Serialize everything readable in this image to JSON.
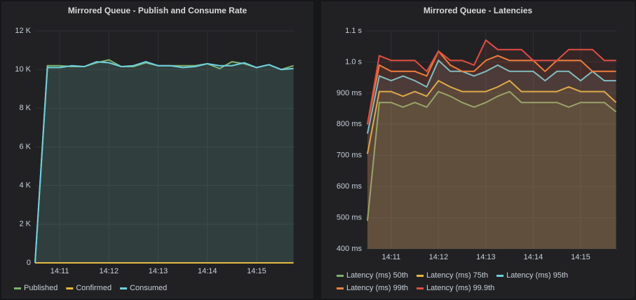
{
  "chart_data": [
    {
      "type": "line",
      "title": "Mirrored Queue - Publish and Consume Rate",
      "x": [
        10.5,
        10.75,
        11,
        11.25,
        11.5,
        11.75,
        12,
        12.25,
        12.5,
        12.75,
        13,
        13.25,
        13.5,
        13.75,
        14,
        14.25,
        14.5,
        14.75,
        15,
        15.25,
        15.5,
        15.75
      ],
      "xlim": [
        10.5,
        15.77
      ],
      "xticks": [
        {
          "value": 11,
          "label": "14:11"
        },
        {
          "value": 12,
          "label": "14:12"
        },
        {
          "value": 13,
          "label": "14:13"
        },
        {
          "value": 14,
          "label": "14:14"
        },
        {
          "value": 15,
          "label": "14:15"
        }
      ],
      "ylim": [
        0,
        12000
      ],
      "yticks": [
        0,
        {
          "value": 2000,
          "label": "2 K"
        },
        {
          "value": 4000,
          "label": "4 K"
        },
        {
          "value": 6000,
          "label": "6 K"
        },
        {
          "value": 8000,
          "label": "8 K"
        },
        {
          "value": 10000,
          "label": "10 K"
        },
        {
          "value": 12000,
          "label": "12 K"
        }
      ],
      "grid": true,
      "fill": true,
      "legend": "bottom",
      "series": [
        {
          "name": "Published",
          "color": "#7eb26d",
          "values": [
            0,
            10200,
            10200,
            10150,
            10150,
            10350,
            10500,
            10150,
            10150,
            10350,
            10200,
            10200,
            10200,
            10200,
            10300,
            10050,
            10400,
            10300,
            10100,
            10250,
            10000,
            10200
          ]
        },
        {
          "name": "Confirmed",
          "color": "#eab839",
          "values": [
            0,
            0,
            0,
            0,
            0,
            0,
            0,
            0,
            0,
            0,
            0,
            0,
            0,
            0,
            0,
            0,
            0,
            0,
            0,
            0,
            0,
            0
          ]
        },
        {
          "name": "Consumed",
          "color": "#6ed0e0",
          "values": [
            0,
            10100,
            10100,
            10200,
            10150,
            10400,
            10350,
            10150,
            10200,
            10400,
            10200,
            10200,
            10100,
            10150,
            10300,
            10200,
            10200,
            10350,
            10100,
            10250,
            10000,
            10050
          ]
        }
      ]
    },
    {
      "type": "line",
      "title": "Mirrored Queue - Latencies",
      "x": [
        10.5,
        10.75,
        11,
        11.25,
        11.5,
        11.75,
        12,
        12.25,
        12.5,
        12.75,
        13,
        13.25,
        13.5,
        13.75,
        14,
        14.25,
        14.5,
        14.75,
        15,
        15.25,
        15.5,
        15.75
      ],
      "xlim": [
        10.47,
        15.77
      ],
      "xticks": [
        {
          "value": 11,
          "label": "14:11"
        },
        {
          "value": 12,
          "label": "14:12"
        },
        {
          "value": 13,
          "label": "14:13"
        },
        {
          "value": 14,
          "label": "14:14"
        },
        {
          "value": 15,
          "label": "14:15"
        }
      ],
      "ylim": [
        400,
        1100
      ],
      "yticks": [
        {
          "value": 400,
          "label": "400 ms"
        },
        {
          "value": 500,
          "label": "500 ms"
        },
        {
          "value": 600,
          "label": "600 ms"
        },
        {
          "value": 700,
          "label": "700 ms"
        },
        {
          "value": 800,
          "label": "800 ms"
        },
        {
          "value": 900,
          "label": "900 ms"
        },
        {
          "value": 1000,
          "label": "1.0 s"
        },
        {
          "value": 1100,
          "label": "1.1 s"
        }
      ],
      "grid": true,
      "fill": true,
      "legend": "bottom",
      "series": [
        {
          "name": "Latency (ms) 50th",
          "color": "#7eb26d",
          "values": [
            490,
            870,
            870,
            855,
            870,
            855,
            905,
            890,
            870,
            855,
            870,
            890,
            905,
            870,
            870,
            870,
            870,
            855,
            870,
            870,
            870,
            840
          ]
        },
        {
          "name": "Latency (ms) 75th",
          "color": "#eab839",
          "values": [
            705,
            905,
            905,
            890,
            905,
            890,
            940,
            920,
            905,
            905,
            905,
            920,
            940,
            905,
            905,
            905,
            905,
            920,
            905,
            905,
            905,
            870
          ]
        },
        {
          "name": "Latency (ms) 95th",
          "color": "#6ed0e0",
          "values": [
            770,
            955,
            940,
            955,
            940,
            920,
            1005,
            970,
            970,
            955,
            970,
            990,
            970,
            970,
            970,
            940,
            970,
            970,
            940,
            970,
            940,
            940
          ]
        },
        {
          "name": "Latency (ms) 99th",
          "color": "#ef843c",
          "values": [
            800,
            990,
            970,
            970,
            970,
            955,
            1035,
            990,
            970,
            970,
            1005,
            1020,
            1005,
            1005,
            1005,
            970,
            1005,
            1005,
            1005,
            970,
            970,
            970
          ]
        },
        {
          "name": "Latency (ms) 99.9th",
          "color": "#e24d42",
          "values": [
            800,
            1020,
            1005,
            1005,
            1005,
            970,
            1035,
            1005,
            1005,
            990,
            1070,
            1040,
            1040,
            1040,
            1005,
            1005,
            1005,
            1040,
            1040,
            1040,
            1005,
            1005
          ]
        }
      ]
    }
  ]
}
